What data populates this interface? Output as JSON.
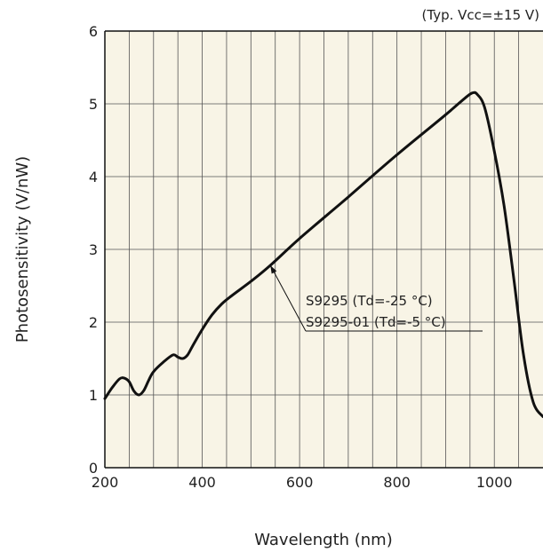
{
  "chart_data": {
    "type": "line",
    "note": "(Typ. Vcc=±15 V)",
    "xlabel": "Wavelength (nm)",
    "ylabel": "Photosensitivity (V/nW)",
    "xlim": [
      200,
      1100
    ],
    "ylim": [
      0,
      6
    ],
    "grid": true,
    "x_ticks": [
      200,
      400,
      600,
      800,
      1000
    ],
    "x_tick_labels": [
      "200",
      "400",
      "600",
      "800",
      "1000"
    ],
    "y_ticks": [
      0,
      1,
      2,
      3,
      4,
      5,
      6
    ],
    "y_tick_labels": [
      "0",
      "1",
      "2",
      "3",
      "4",
      "5",
      "6"
    ],
    "annotation": {
      "lines": [
        "S9295 (Td=-25 °C)",
        "S9295-01 (Td=-5 °C)"
      ],
      "points_to": [
        540,
        2.78
      ]
    },
    "series": [
      {
        "x": [
          200,
          215,
          230,
          240,
          250,
          260,
          270,
          280,
          290,
          300,
          320,
          340,
          350,
          360,
          370,
          380,
          400,
          420,
          440,
          460,
          500,
          540,
          600,
          700,
          800,
          900,
          940,
          955,
          965,
          980,
          1000,
          1020,
          1040,
          1060,
          1080,
          1100
        ],
        "values": [
          0.95,
          1.1,
          1.22,
          1.23,
          1.18,
          1.05,
          1.0,
          1.06,
          1.2,
          1.32,
          1.45,
          1.55,
          1.52,
          1.5,
          1.55,
          1.67,
          1.9,
          2.1,
          2.25,
          2.36,
          2.56,
          2.78,
          3.15,
          3.72,
          4.3,
          4.85,
          5.08,
          5.15,
          5.13,
          4.95,
          4.35,
          3.6,
          2.6,
          1.55,
          0.9,
          0.7
        ]
      }
    ]
  }
}
